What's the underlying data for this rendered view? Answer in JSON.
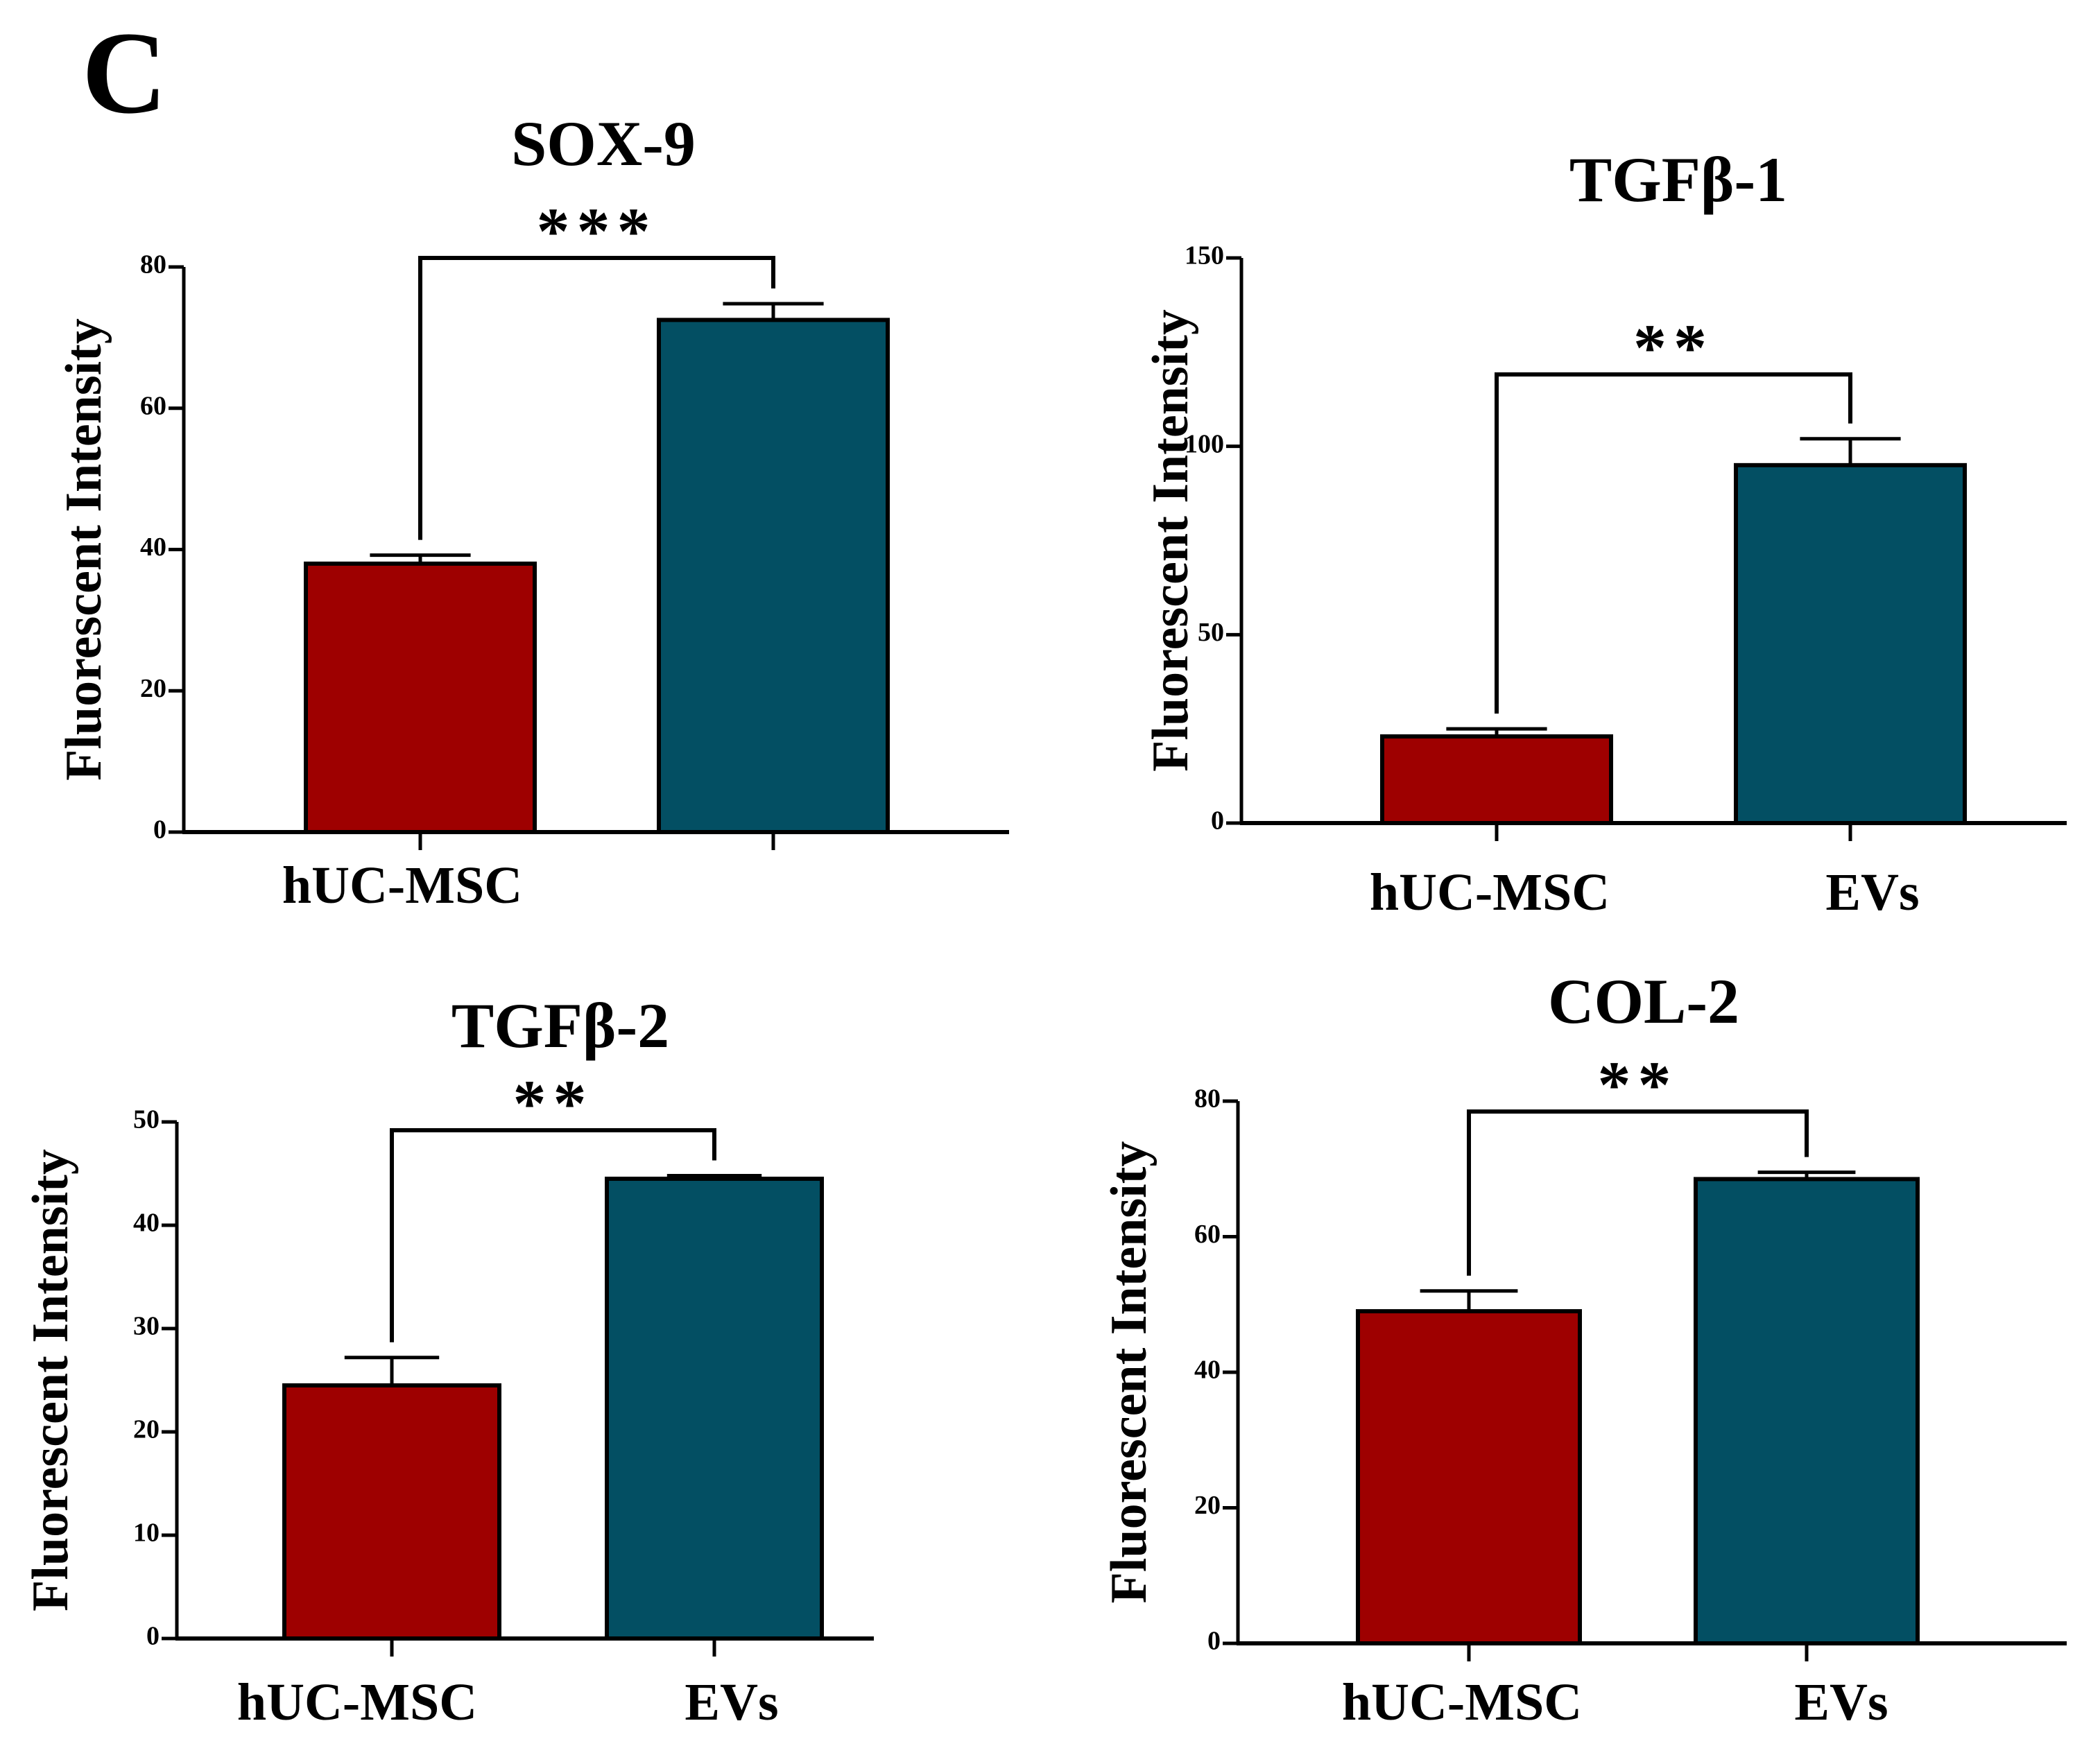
{
  "panel_label": "C",
  "chart_data": [
    {
      "type": "bar",
      "title": "SOX-9",
      "ylabel": "Fluorescent Intensity",
      "xlabel": "",
      "categories": [
        "hUC-MSC",
        ""
      ],
      "values": [
        38,
        72.5
      ],
      "errors": [
        1.2,
        2.3
      ],
      "ylim": [
        0,
        80
      ],
      "yticks": [
        0,
        20,
        40,
        60,
        80
      ],
      "significance": "***",
      "bar_colors": [
        "#9e0000",
        "#034f63"
      ],
      "grid": false,
      "legend": "none"
    },
    {
      "type": "bar",
      "title": "TGFβ-1",
      "ylabel": "Fluorescent Intensity",
      "xlabel": "",
      "categories": [
        "hUC-MSC",
        "EVs"
      ],
      "values": [
        23,
        95
      ],
      "errors": [
        2,
        7
      ],
      "ylim": [
        0,
        150
      ],
      "yticks": [
        0,
        50,
        100,
        150
      ],
      "significance": "**",
      "bar_colors": [
        "#9e0000",
        "#034f63"
      ],
      "grid": false,
      "legend": "none"
    },
    {
      "type": "bar",
      "title": "TGFβ-2",
      "ylabel": "Fluorescent Intensity",
      "xlabel": "",
      "categories": [
        "hUC-MSC",
        "EVs"
      ],
      "values": [
        24.5,
        44.5
      ],
      "errors": [
        2.7,
        0.3
      ],
      "ylim": [
        0,
        50
      ],
      "yticks": [
        0,
        10,
        20,
        30,
        40,
        50
      ],
      "significance": "**",
      "bar_colors": [
        "#9e0000",
        "#034f63"
      ],
      "grid": false,
      "legend": "none"
    },
    {
      "type": "bar",
      "title": "COL-2",
      "ylabel": "Fluorescent Intensity",
      "xlabel": "",
      "categories": [
        "hUC-MSC",
        "EVs"
      ],
      "values": [
        49,
        68.5
      ],
      "errors": [
        3,
        1
      ],
      "ylim": [
        0,
        80
      ],
      "yticks": [
        0,
        20,
        40,
        60,
        80
      ],
      "significance": "**",
      "bar_colors": [
        "#9e0000",
        "#034f63"
      ],
      "grid": false,
      "legend": "none"
    }
  ]
}
